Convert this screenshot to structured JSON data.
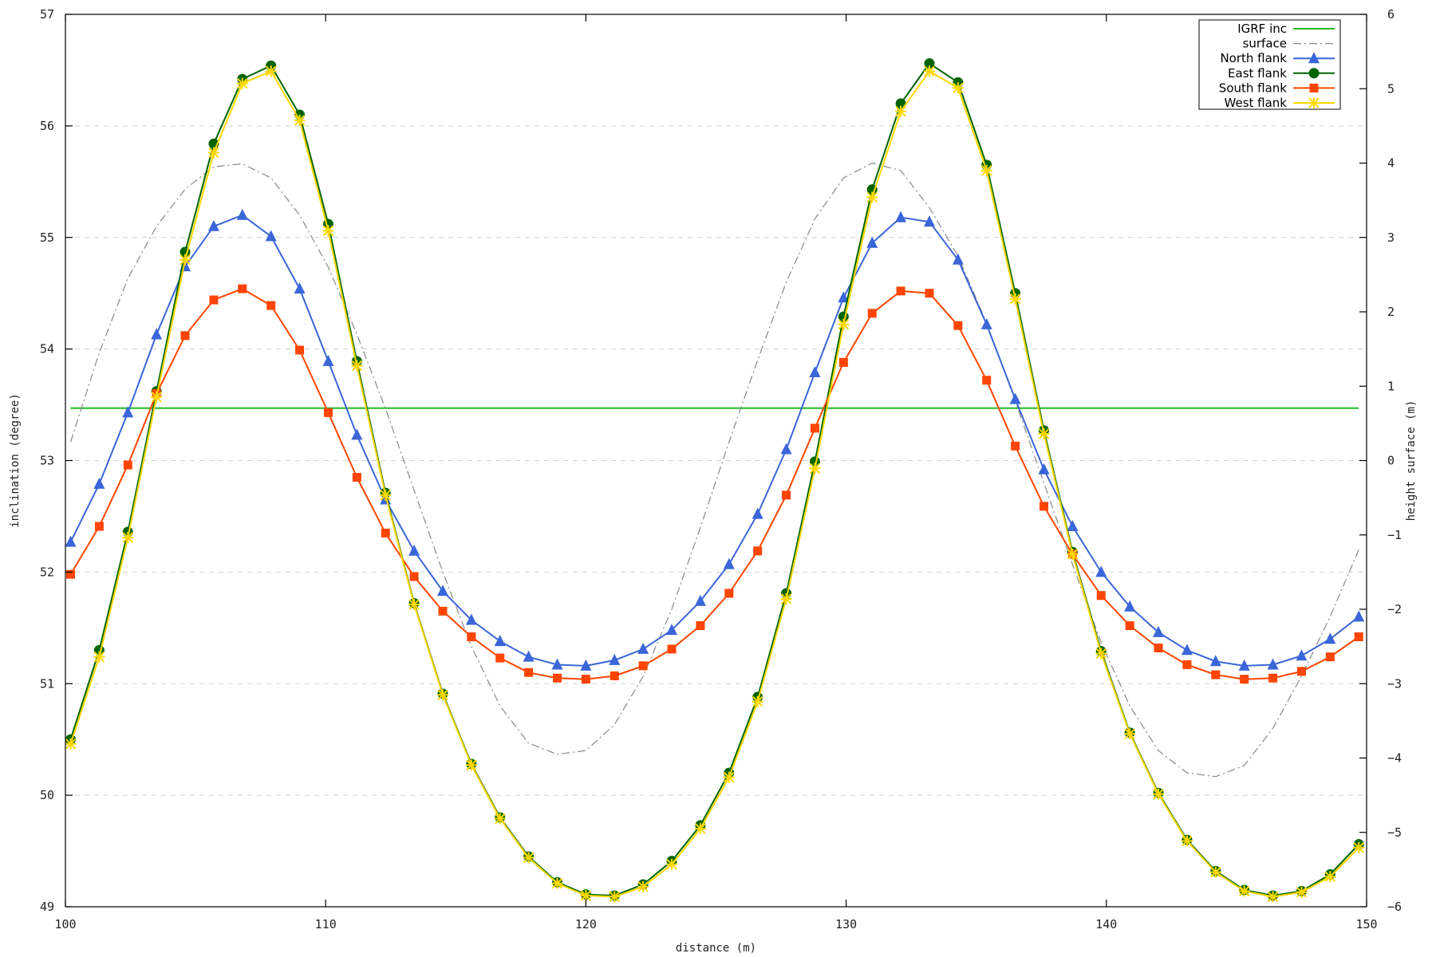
{
  "chart_data": {
    "type": "line",
    "xlabel": "distance (m)",
    "ylabel": "inclination (degree)",
    "y2label": "height surface (m)",
    "xlim": [
      100,
      150
    ],
    "ylim": [
      49,
      57
    ],
    "y2lim": [
      -6,
      6
    ],
    "xticks": [
      100,
      110,
      120,
      130,
      140,
      150
    ],
    "yticks": [
      49,
      50,
      51,
      52,
      53,
      54,
      55,
      56,
      57
    ],
    "y2ticks": [
      -6,
      -5,
      -4,
      -3,
      -2,
      -1,
      0,
      1,
      2,
      3,
      4,
      5,
      6
    ],
    "y2tick_labels": [
      "−6",
      "−5",
      "−4",
      "−3",
      "−2",
      "−1",
      "0",
      "1",
      "2",
      "3",
      "4",
      "5",
      "6"
    ],
    "grid": "horizontal dashed",
    "legend_position": "top-right",
    "x": [
      100.2,
      101.3,
      102.4,
      103.5,
      104.6,
      105.7,
      106.8,
      107.9,
      109.0,
      110.1,
      111.2,
      112.3,
      113.4,
      114.5,
      115.6,
      116.7,
      117.8,
      118.9,
      120.0,
      121.1,
      122.2,
      123.3,
      124.4,
      125.5,
      126.6,
      127.7,
      128.8,
      129.9,
      131.0,
      132.1,
      133.2,
      134.3,
      135.4,
      136.5,
      137.6,
      138.7,
      139.8,
      140.9,
      142.0,
      143.1,
      144.2,
      145.3,
      146.4,
      147.5,
      148.6,
      149.7
    ],
    "series": [
      {
        "name": "IGRF inc",
        "axis": "left",
        "color": "#22bb22",
        "marker": "none",
        "x": [
          100.2,
          149.7
        ],
        "values": [
          53.47,
          53.47
        ]
      },
      {
        "name": "surface",
        "axis": "right",
        "color": "#888888",
        "dashed": true,
        "marker": "none",
        "values": [
          0.25,
          1.45,
          2.45,
          3.15,
          3.65,
          3.95,
          3.99,
          3.8,
          3.3,
          2.6,
          1.7,
          0.7,
          -0.4,
          -1.5,
          -2.5,
          -3.3,
          -3.8,
          -3.95,
          -3.9,
          -3.55,
          -2.9,
          -2.0,
          -0.9,
          0.25,
          1.35,
          2.4,
          3.25,
          3.8,
          4.0,
          3.9,
          3.4,
          2.75,
          1.85,
          0.8,
          -0.3,
          -1.4,
          -2.45,
          -3.3,
          -3.9,
          -4.2,
          -4.25,
          -4.1,
          -3.6,
          -2.9,
          -2.1,
          -1.2
        ]
      },
      {
        "name": "North flank",
        "axis": "left",
        "color": "#3a66d8",
        "marker": "triangle",
        "values": [
          52.27,
          52.79,
          53.43,
          54.13,
          54.74,
          55.1,
          55.2,
          55.01,
          54.54,
          53.89,
          53.23,
          52.65,
          52.19,
          51.83,
          51.57,
          51.38,
          51.24,
          51.17,
          51.16,
          51.21,
          51.31,
          51.48,
          51.74,
          52.07,
          52.52,
          53.1,
          53.79,
          54.46,
          54.95,
          55.18,
          55.14,
          54.8,
          54.22,
          53.55,
          52.92,
          52.41,
          52.0,
          51.69,
          51.46,
          51.3,
          51.2,
          51.16,
          51.17,
          51.25,
          51.4,
          51.6
        ]
      },
      {
        "name": "East flank",
        "axis": "left",
        "color": "#006400",
        "marker": "circle",
        "values": [
          50.5,
          51.3,
          52.36,
          53.62,
          54.87,
          55.84,
          56.42,
          56.54,
          56.1,
          55.12,
          53.89,
          52.71,
          51.72,
          50.91,
          50.28,
          49.8,
          49.45,
          49.22,
          49.11,
          49.1,
          49.2,
          49.41,
          49.73,
          50.2,
          50.88,
          51.81,
          52.99,
          54.29,
          55.43,
          56.2,
          56.56,
          56.39,
          55.65,
          54.5,
          53.27,
          52.18,
          51.29,
          50.56,
          50.02,
          49.6,
          49.32,
          49.15,
          49.1,
          49.14,
          49.29,
          49.56
        ]
      },
      {
        "name": "South flank",
        "axis": "left",
        "color": "#ff4500",
        "marker": "square",
        "values": [
          51.98,
          52.41,
          52.96,
          53.6,
          54.12,
          54.44,
          54.54,
          54.39,
          53.99,
          53.43,
          52.85,
          52.35,
          51.96,
          51.65,
          51.42,
          51.23,
          51.1,
          51.05,
          51.04,
          51.07,
          51.16,
          51.31,
          51.52,
          51.81,
          52.19,
          52.69,
          53.29,
          53.88,
          54.32,
          54.52,
          54.5,
          54.21,
          53.72,
          53.13,
          52.59,
          52.16,
          51.79,
          51.52,
          51.32,
          51.17,
          51.08,
          51.04,
          51.05,
          51.11,
          51.24,
          51.42
        ]
      },
      {
        "name": "West flank",
        "axis": "left",
        "color": "#ffd700",
        "marker": "star",
        "values": [
          50.46,
          51.24,
          52.31,
          53.57,
          54.8,
          55.76,
          56.38,
          56.49,
          56.05,
          55.06,
          53.85,
          52.69,
          51.71,
          50.9,
          50.27,
          49.79,
          49.44,
          49.21,
          49.1,
          49.09,
          49.18,
          49.38,
          49.7,
          50.16,
          50.84,
          51.76,
          52.93,
          54.22,
          55.36,
          56.13,
          56.49,
          56.34,
          55.6,
          54.45,
          53.24,
          52.16,
          51.27,
          50.55,
          50.01,
          49.59,
          49.31,
          49.14,
          49.09,
          49.13,
          49.27,
          49.53
        ]
      }
    ]
  }
}
